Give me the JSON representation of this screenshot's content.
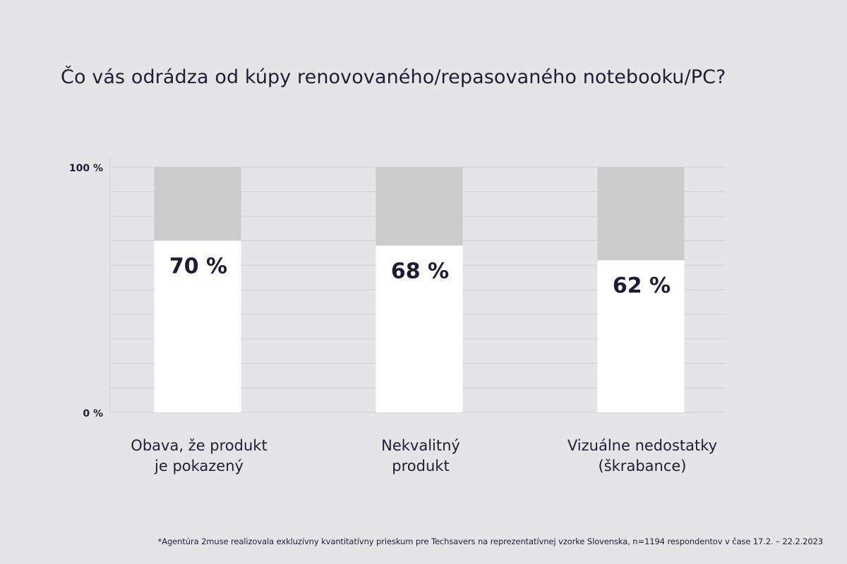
{
  "chart_data": {
    "type": "bar",
    "title": "Čo vás odrádza od kúpy renovovaného/repasovaného notebooku/PC?",
    "categories": [
      [
        "Obava, že produkt",
        "je pokazený"
      ],
      [
        "Nekvalitný",
        "produkt"
      ],
      [
        "Vizuálne nedostatky",
        "(škrabance)"
      ]
    ],
    "values": [
      70,
      68,
      62
    ],
    "value_labels": [
      "70 %",
      "68 %",
      "62 %"
    ],
    "ylim": [
      0,
      100
    ],
    "ytick_labels": {
      "min": "0 %",
      "max": "100 %"
    },
    "grid": true,
    "stacked_remainder": true,
    "colors": {
      "background": "#e4e5e7",
      "bar": "#ffffff",
      "remainder": "#cbcbcc",
      "grid": "#cfd0d2",
      "text": "#221d33"
    }
  },
  "footnote": "*Agentúra 2muse realizovala exkluzívny kvantitatívny prieskum pre Techsavers na reprezentatívnej vzorke Slovenska, n=1194 respondentov v čase 17.2. – 22.2.2023"
}
